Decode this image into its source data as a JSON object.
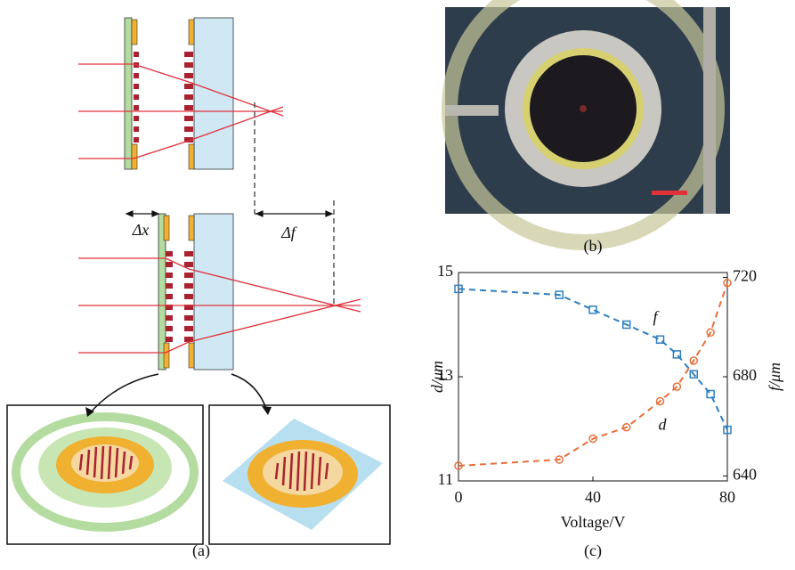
{
  "panels": {
    "a": {
      "label": "(a)",
      "delta_x": "Δx",
      "delta_f": "Δf"
    },
    "b": {
      "label": "(b)"
    }
  },
  "chart_data": {
    "type": "scatter",
    "label": "(c)",
    "x_label": "Voltage/V",
    "y_label": "d/μm",
    "y2_label": "f/μm",
    "x": [
      0,
      30,
      40,
      50,
      60,
      65,
      70,
      75,
      80
    ],
    "series": [
      {
        "name": "f",
        "color": "#2f7fc1",
        "axis": "y2",
        "marker": "square",
        "values": [
          715.4,
          713,
          707,
          701,
          695,
          689,
          681,
          673,
          658.6
        ]
      },
      {
        "name": "d",
        "color": "#e8703a",
        "axis": "y",
        "marker": "circle",
        "values": [
          11.29,
          11.41,
          11.81,
          12.03,
          12.53,
          12.81,
          13.31,
          13.85,
          14.8
        ]
      }
    ],
    "xlim": [
      0,
      80
    ],
    "xticks": [
      0,
      40,
      80
    ],
    "ylim": [
      11,
      15
    ],
    "yticks": [
      11,
      13,
      15
    ],
    "y2lim": [
      638,
      722
    ],
    "y2ticks": [
      640,
      680,
      720
    ]
  }
}
